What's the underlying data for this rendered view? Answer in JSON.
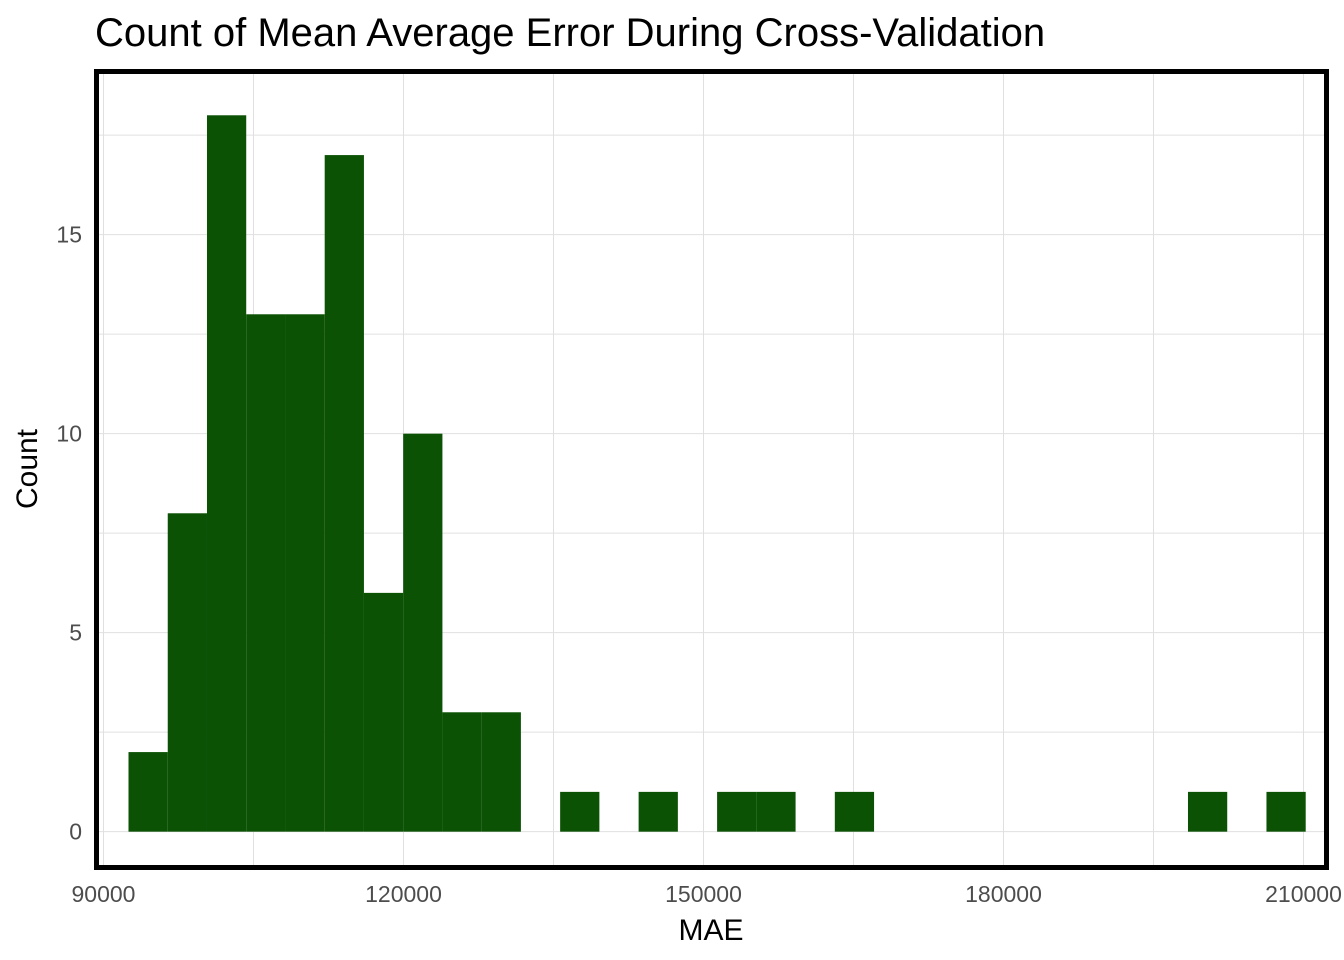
{
  "chart_data": {
    "type": "bar",
    "title": "Count of Mean Average Error During Cross-Validation",
    "xlabel": "MAE",
    "ylabel": "Count",
    "xlim": [
      89300,
      212300
    ],
    "ylim": [
      -0.9,
      19.1
    ],
    "x_ticks": [
      90000,
      120000,
      150000,
      180000,
      210000
    ],
    "x_tick_labels": [
      "90000",
      "120000",
      "150000",
      "180000",
      "210000"
    ],
    "y_ticks": [
      0,
      5,
      10,
      15
    ],
    "y_tick_labels": [
      "0",
      "5",
      "10",
      "15"
    ],
    "grid": true,
    "bar_color": "#0b5204",
    "bin_width": 3924,
    "bins": [
      {
        "start": 92500,
        "end": 96424,
        "count": 2
      },
      {
        "start": 96424,
        "end": 100348,
        "count": 8
      },
      {
        "start": 100348,
        "end": 104272,
        "count": 18
      },
      {
        "start": 104272,
        "end": 108196,
        "count": 13
      },
      {
        "start": 108196,
        "end": 112120,
        "count": 13
      },
      {
        "start": 112120,
        "end": 116044,
        "count": 17
      },
      {
        "start": 116044,
        "end": 119968,
        "count": 6
      },
      {
        "start": 119968,
        "end": 123892,
        "count": 10
      },
      {
        "start": 123892,
        "end": 127816,
        "count": 3
      },
      {
        "start": 127816,
        "end": 131740,
        "count": 3
      },
      {
        "start": 135664,
        "end": 139588,
        "count": 1
      },
      {
        "start": 143512,
        "end": 147436,
        "count": 1
      },
      {
        "start": 151360,
        "end": 155284,
        "count": 1
      },
      {
        "start": 155284,
        "end": 159208,
        "count": 1
      },
      {
        "start": 163132,
        "end": 167056,
        "count": 1
      },
      {
        "start": 198448,
        "end": 202372,
        "count": 1
      },
      {
        "start": 206296,
        "end": 210220,
        "count": 1
      }
    ]
  }
}
